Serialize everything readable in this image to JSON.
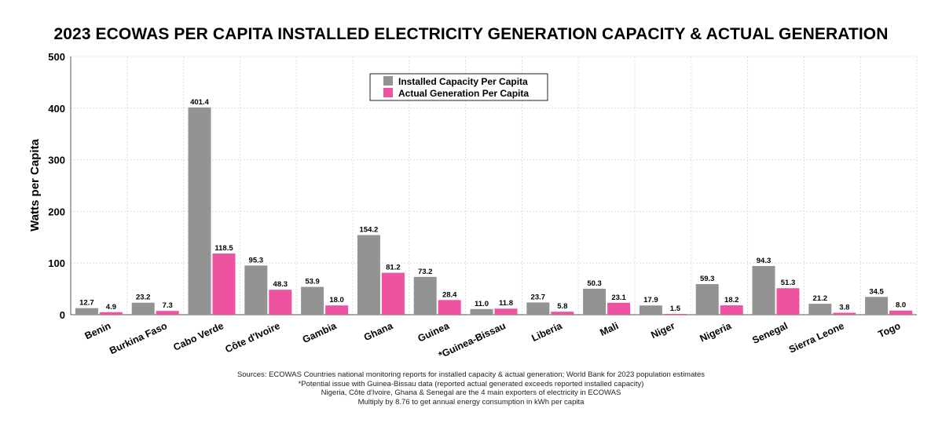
{
  "chart_data": {
    "type": "bar",
    "title": "2023 ECOWAS PER CAPITA INSTALLED ELECTRICITY GENERATION CAPACITY & ACTUAL GENERATION",
    "xlabel": "",
    "ylabel": "Watts per Capita",
    "ylim": [
      0,
      500
    ],
    "yticks": [
      "0",
      "100",
      "200",
      "300",
      "400",
      "500"
    ],
    "grid": true,
    "legend_position": "top-center",
    "categories": [
      "Benin",
      "Burkina Faso",
      "Cabo Verde",
      "Côte d'Ivoire",
      "Gambia",
      "Ghana",
      "Guinea",
      "*Guinea-Bissau",
      "Liberia",
      "Mali",
      "Niger",
      "Nigeria",
      "Senegal",
      "Sierra Leone",
      "Togo"
    ],
    "series": [
      {
        "name": "Installed Capacity Per Capita",
        "color": "#939393",
        "values": [
          12.7,
          23.2,
          401.4,
          95.3,
          53.9,
          154.2,
          73.2,
          11.0,
          23.7,
          50.3,
          17.9,
          59.3,
          94.3,
          21.2,
          34.5
        ],
        "labels": [
          "12.7",
          "23.2",
          "401.4",
          "95.3",
          "53.9",
          "154.2",
          "73.2",
          "11.0",
          "23.7",
          "50.3",
          "17.9",
          "59.3",
          "94.3",
          "21.2",
          "34.5"
        ]
      },
      {
        "name": "Actual Generation Per Capita",
        "color": "#ee53a2",
        "values": [
          4.9,
          7.3,
          118.5,
          48.3,
          18.0,
          81.2,
          28.4,
          11.8,
          5.8,
          23.1,
          1.5,
          18.2,
          51.3,
          3.8,
          8.0
        ],
        "labels": [
          "4.9",
          "7.3",
          "118.5",
          "48.3",
          "18.0",
          "81.2",
          "28.4",
          "11.8",
          "5.8",
          "23.1",
          "1.5",
          "18.2",
          "51.3",
          "3.8",
          "8.0"
        ]
      }
    ]
  },
  "notes": {
    "sources": "Sources: ECOWAS Countries national monitoring reports for installed capacity & actual generation; World Bank for 2023 population estimates",
    "guinea_bissau_note": "*Potential issue with Guinea-Bissau data (reported actual generated exceeds reported installed capacity)",
    "exporters_note": "Nigeria, Côte d'Ivoire, Ghana & Senegal are the 4 main exporters of electricity in ECOWAS",
    "conversion_note": "Multiply by 8.76 to get annual energy consumption in kWh per capita"
  }
}
